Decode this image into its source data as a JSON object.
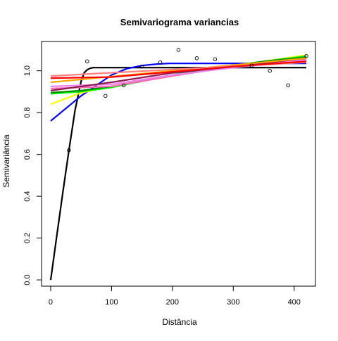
{
  "chart_data": {
    "type": "scatter",
    "title": "Semivariograma variancias",
    "xlabel": "Distância",
    "ylabel": "Semivariância",
    "xlim": [
      -15,
      435
    ],
    "ylim": [
      -0.03,
      1.14
    ],
    "x_ticks": [
      0,
      100,
      200,
      300,
      400
    ],
    "y_ticks": [
      0.0,
      0.2,
      0.4,
      0.6,
      0.8,
      1.0
    ],
    "grid": false,
    "legend": "none",
    "points": [
      {
        "x": 30,
        "y": 0.62
      },
      {
        "x": 60,
        "y": 1.045
      },
      {
        "x": 90,
        "y": 0.88
      },
      {
        "x": 120,
        "y": 0.93
      },
      {
        "x": 150,
        "y": 1.02
      },
      {
        "x": 180,
        "y": 1.04
      },
      {
        "x": 210,
        "y": 1.1
      },
      {
        "x": 240,
        "y": 1.06
      },
      {
        "x": 270,
        "y": 1.055
      },
      {
        "x": 330,
        "y": 1.025
      },
      {
        "x": 360,
        "y": 1.0
      },
      {
        "x": 390,
        "y": 0.93
      },
      {
        "x": 420,
        "y": 1.07
      }
    ],
    "series": [
      {
        "color": "#000000",
        "x": [
          0,
          10,
          20,
          30,
          40,
          50,
          55,
          60,
          65,
          70,
          80,
          420
        ],
        "y": [
          0.0,
          0.21,
          0.42,
          0.62,
          0.81,
          0.95,
          0.99,
          1.005,
          1.012,
          1.015,
          1.015,
          1.015
        ]
      },
      {
        "color": "#0000ff",
        "x": [
          0,
          25,
          50,
          75,
          100,
          125,
          150,
          175,
          195,
          210,
          420
        ],
        "y": [
          0.76,
          0.82,
          0.88,
          0.93,
          0.98,
          1.01,
          1.025,
          1.032,
          1.035,
          1.035,
          1.035
        ]
      },
      {
        "color": "#ffff00",
        "x": [
          0,
          50,
          100,
          150,
          200,
          250,
          300,
          350,
          420
        ],
        "y": [
          0.84,
          0.895,
          0.925,
          0.95,
          0.975,
          1.0,
          1.025,
          1.045,
          1.075
        ]
      },
      {
        "color": "#00ff00",
        "x": [
          0,
          50,
          100,
          150,
          200,
          250,
          300,
          350,
          420
        ],
        "y": [
          0.89,
          0.9,
          0.92,
          0.95,
          0.98,
          1.005,
          1.025,
          1.045,
          1.07
        ]
      },
      {
        "color": "#008b00",
        "x": [
          0,
          50,
          100,
          150,
          200,
          250,
          300,
          350,
          420
        ],
        "y": [
          0.895,
          0.905,
          0.925,
          0.95,
          0.98,
          1.005,
          1.025,
          1.045,
          1.065
        ]
      },
      {
        "color": "#ff69b4",
        "x": [
          0,
          100,
          200,
          300,
          420
        ],
        "y": [
          0.915,
          0.925,
          0.975,
          1.02,
          1.055
        ]
      },
      {
        "color": "#ee82ee",
        "x": [
          0,
          100,
          200,
          300,
          420
        ],
        "y": [
          0.925,
          0.935,
          0.98,
          1.015,
          1.05
        ]
      },
      {
        "color": "#8b1a4a",
        "x": [
          0,
          100,
          200,
          300,
          420
        ],
        "y": [
          0.905,
          0.945,
          0.99,
          1.02,
          1.06
        ]
      },
      {
        "color": "#ffa500",
        "x": [
          0,
          420
        ],
        "y": [
          0.945,
          1.06
        ]
      },
      {
        "color": "#ff7f7f",
        "x": [
          0,
          420
        ],
        "y": [
          0.975,
          1.04
        ]
      },
      {
        "color": "#ff0000",
        "x": [
          0,
          100,
          200,
          300,
          420
        ],
        "y": [
          0.965,
          0.97,
          0.995,
          1.02,
          1.045
        ]
      }
    ]
  }
}
